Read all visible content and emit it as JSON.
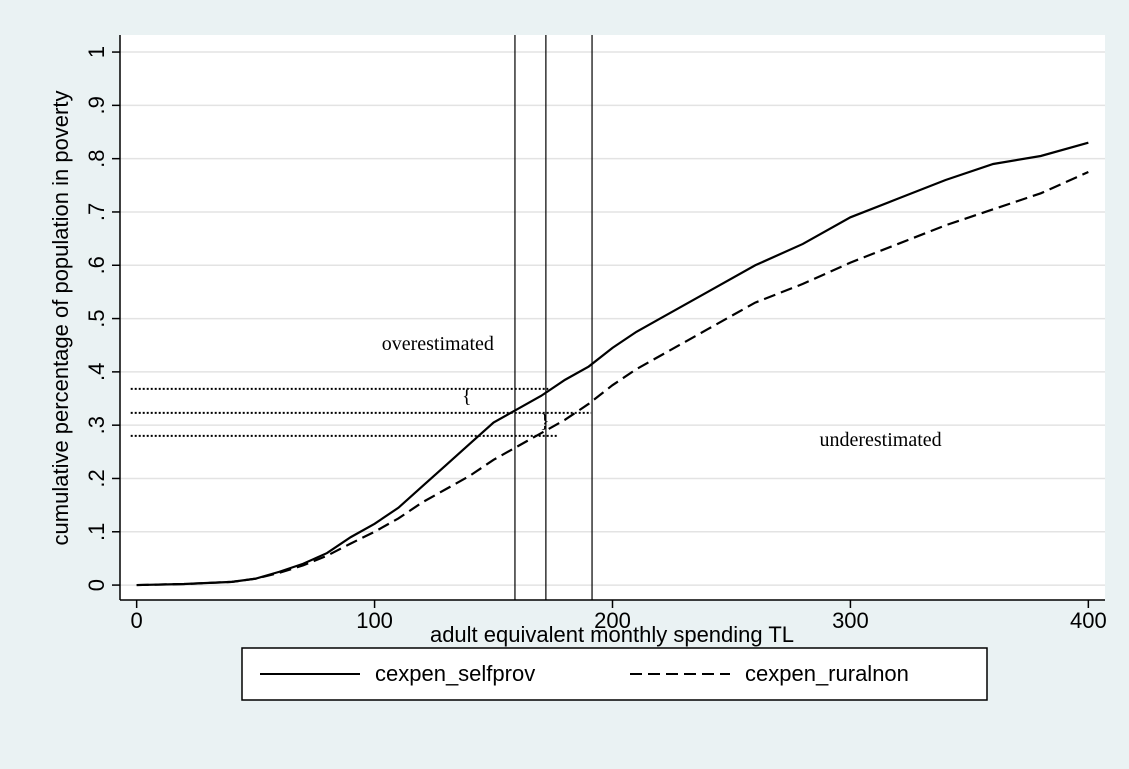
{
  "chart_data": {
    "type": "line",
    "xlabel": "adult equivalent monthly spending TL",
    "ylabel": "cumulative percentage of population in poverty",
    "x": [
      0,
      20,
      40,
      50,
      60,
      70,
      80,
      90,
      100,
      110,
      120,
      130,
      140,
      150,
      160,
      170,
      180,
      190,
      200,
      210,
      220,
      240,
      260,
      280,
      300,
      320,
      340,
      360,
      380,
      400
    ],
    "series": [
      {
        "name": "cexpen_selfprov",
        "color": "#000000",
        "dash": "solid",
        "values": [
          0,
          0.002,
          0.006,
          0.012,
          0.025,
          0.04,
          0.06,
          0.09,
          0.115,
          0.145,
          0.185,
          0.225,
          0.265,
          0.305,
          0.33,
          0.355,
          0.385,
          0.41,
          0.445,
          0.475,
          0.5,
          0.55,
          0.6,
          0.64,
          0.69,
          0.725,
          0.76,
          0.79,
          0.805,
          0.83
        ]
      },
      {
        "name": "cexpen_ruralnon",
        "color": "#000000",
        "dash": "dashed",
        "values": [
          0,
          0.002,
          0.006,
          0.012,
          0.023,
          0.037,
          0.055,
          0.078,
          0.1,
          0.125,
          0.155,
          0.18,
          0.205,
          0.235,
          0.26,
          0.285,
          0.31,
          0.34,
          0.375,
          0.405,
          0.43,
          0.48,
          0.53,
          0.565,
          0.605,
          0.64,
          0.675,
          0.705,
          0.735,
          0.775
        ]
      }
    ],
    "xlim": [
      -7,
      407
    ],
    "ylim": [
      -0.028,
      1.032
    ],
    "xticks": [
      0,
      100,
      200,
      300,
      400
    ],
    "yticks": [
      0,
      {
        "value": 0.1,
        "label": ".1"
      },
      {
        "value": 0.2,
        "label": ".2"
      },
      {
        "value": 0.3,
        "label": ".3"
      },
      {
        "value": 0.4,
        "label": ".4"
      },
      {
        "value": 0.5,
        "label": ".5"
      },
      {
        "value": 0.6,
        "label": ".6"
      },
      {
        "value": 0.7,
        "label": ".7"
      },
      {
        "value": 0.8,
        "label": ".8"
      },
      {
        "value": 0.9,
        "label": ".9"
      },
      1
    ],
    "grid": true,
    "vlines": [
      159,
      172,
      191.4
    ],
    "hlines": [
      {
        "y": 0.368,
        "x": [
          -2.5,
          173
        ]
      },
      {
        "y": 0.323,
        "x": [
          -2.5,
          191
        ]
      },
      {
        "y": 0.28,
        "x": [
          -2.5,
          177
        ]
      }
    ],
    "annotations": [
      {
        "text": "overestimated",
        "x": 103,
        "y": 0.45
      },
      {
        "text": "underestimated",
        "x": 287,
        "y": 0.27
      }
    ]
  }
}
